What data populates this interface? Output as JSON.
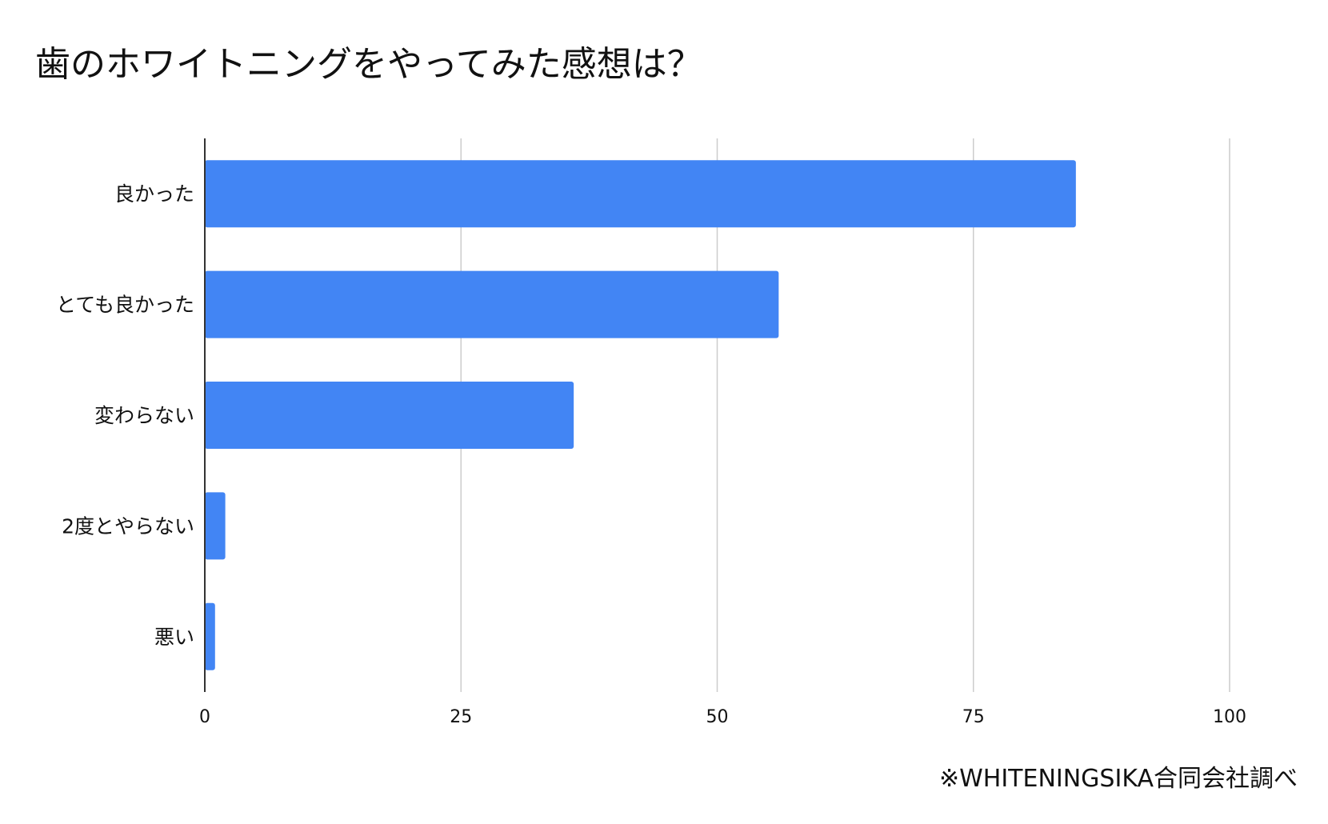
{
  "chart_data": {
    "type": "bar",
    "orientation": "horizontal",
    "title": "歯のホワイトニングをやってみた感想は？",
    "categories": [
      "良かった",
      "とても良かった",
      "変わらない",
      "2度とやらない",
      "悪い"
    ],
    "values": [
      85,
      56,
      36,
      2,
      1
    ],
    "xlim": [
      0,
      100
    ],
    "xticks": [
      0,
      25,
      50,
      75,
      100
    ],
    "xlabel": "",
    "ylabel": "",
    "grid": true,
    "legend": "none",
    "bar_color": "#4285f4",
    "gridline_color": "#cccccc",
    "axis_color": "#333333",
    "footnote": "※WHITENINGSIKA合同会社調べ"
  }
}
